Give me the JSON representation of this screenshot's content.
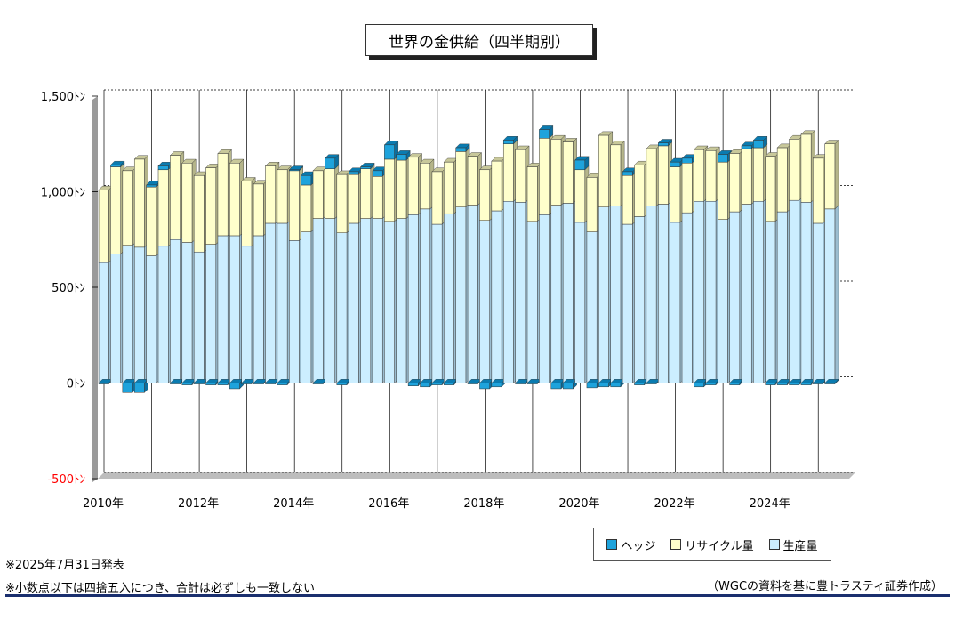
{
  "title": "世界の金供給（四半期別）",
  "colors": {
    "hedge": "#1ea3dc",
    "recycle": "#ffffcc",
    "production": "#cceeff",
    "hedge_top": "#0a7bb0",
    "recycle_top": "#c8c89a",
    "production_top": "#a3c6d8",
    "negative_label": "#ff0000"
  },
  "legend": {
    "hedge": "ヘッジ",
    "recycle": "リサイクル量",
    "production": "生産量"
  },
  "notes": {
    "date": "※2025年7月31日発表",
    "rounding": "※小数点以下は四捨五入につき、合計は必ずしも一致しない",
    "source": "（WGCの資料を基に豊トラスティ証券作成）"
  },
  "chart_data": {
    "type": "bar",
    "stacked": true,
    "title": "世界の金供給（四半期別）",
    "unit": "トン",
    "ylim": [
      -500,
      1500
    ],
    "y_ticks": [
      {
        "value": 1500,
        "label": "1,500ﾄﾝ"
      },
      {
        "value": 1000,
        "label": "1,000ﾄﾝ"
      },
      {
        "value": 500,
        "label": "500ﾄﾝ"
      },
      {
        "value": 0,
        "label": "0ﾄﾝ"
      },
      {
        "value": -500,
        "label": "-500ﾄﾝ"
      }
    ],
    "x_ticks": [
      "2010年",
      "2012年",
      "2014年",
      "2016年",
      "2018年",
      "2020年",
      "2022年",
      "2024年"
    ],
    "categories": [
      "2010Q1",
      "2010Q2",
      "2010Q3",
      "2010Q4",
      "2011Q1",
      "2011Q2",
      "2011Q3",
      "2011Q4",
      "2012Q1",
      "2012Q2",
      "2012Q3",
      "2012Q4",
      "2013Q1",
      "2013Q2",
      "2013Q3",
      "2013Q4",
      "2014Q1",
      "2014Q2",
      "2014Q3",
      "2014Q4",
      "2015Q1",
      "2015Q2",
      "2015Q3",
      "2015Q4",
      "2016Q1",
      "2016Q2",
      "2016Q3",
      "2016Q4",
      "2017Q1",
      "2017Q2",
      "2017Q3",
      "2017Q4",
      "2018Q1",
      "2018Q2",
      "2018Q3",
      "2018Q4",
      "2019Q1",
      "2019Q2",
      "2019Q3",
      "2019Q4",
      "2020Q1",
      "2020Q2",
      "2020Q3",
      "2020Q4",
      "2021Q1",
      "2021Q2",
      "2021Q3",
      "2021Q4",
      "2022Q1",
      "2022Q2",
      "2022Q3",
      "2022Q4",
      "2023Q1",
      "2023Q2",
      "2023Q3",
      "2023Q4",
      "2024Q1",
      "2024Q2",
      "2024Q3",
      "2024Q4",
      "2025Q1",
      "2025Q2"
    ],
    "series": [
      {
        "name": "生産量",
        "key": "production",
        "values": [
          630,
          675,
          720,
          710,
          665,
          715,
          750,
          735,
          685,
          725,
          770,
          770,
          715,
          770,
          835,
          835,
          745,
          790,
          860,
          860,
          785,
          835,
          860,
          860,
          845,
          860,
          880,
          910,
          830,
          885,
          920,
          930,
          850,
          900,
          950,
          945,
          845,
          880,
          930,
          940,
          840,
          790,
          920,
          925,
          830,
          870,
          925,
          935,
          840,
          890,
          950,
          950,
          855,
          895,
          935,
          950,
          845,
          895,
          955,
          945,
          835,
          910
        ]
      },
      {
        "name": "リサイクル量",
        "key": "recycle",
        "values": [
          380,
          455,
          390,
          460,
          360,
          400,
          440,
          415,
          400,
          400,
          430,
          380,
          340,
          270,
          300,
          280,
          365,
          245,
          250,
          260,
          305,
          255,
          260,
          220,
          325,
          305,
          300,
          240,
          275,
          270,
          290,
          255,
          265,
          260,
          300,
          275,
          285,
          400,
          345,
          320,
          275,
          285,
          375,
          320,
          255,
          270,
          300,
          305,
          290,
          260,
          270,
          265,
          300,
          305,
          290,
          280,
          340,
          335,
          320,
          355,
          340,
          340
        ]
      },
      {
        "name": "ヘッジ",
        "key": "hedge",
        "values": [
          -5,
          10,
          -50,
          -50,
          10,
          20,
          -5,
          -10,
          -5,
          -10,
          -10,
          -30,
          -5,
          -5,
          -5,
          -10,
          5,
          50,
          -5,
          55,
          -10,
          15,
          10,
          30,
          75,
          30,
          -15,
          -20,
          -10,
          -10,
          20,
          -5,
          -30,
          -20,
          20,
          -5,
          -5,
          45,
          -30,
          -30,
          50,
          -25,
          -20,
          -20,
          20,
          -10,
          -5,
          15,
          25,
          25,
          -20,
          -10,
          40,
          -10,
          15,
          40,
          -10,
          -10,
          -10,
          -10,
          -5,
          -5
        ]
      }
    ]
  }
}
